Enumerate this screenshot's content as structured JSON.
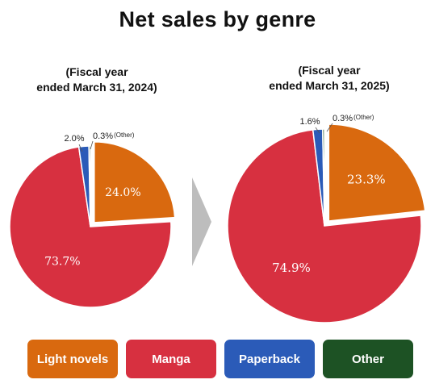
{
  "title": "Net sales by genre",
  "chart_data": [
    {
      "type": "pie",
      "subtitle_line1": "(Fiscal year",
      "subtitle_line2": "ended March 31, 2024)",
      "slices": [
        {
          "name": "Light novels",
          "value": 24.0,
          "label": "24.0%"
        },
        {
          "name": "Manga",
          "value": 73.7,
          "label": "73.7%"
        },
        {
          "name": "Paperback",
          "value": 2.0,
          "label": "2.0%"
        },
        {
          "name": "Other",
          "value": 0.3,
          "label": "0.3%",
          "tag": "(Other)"
        }
      ]
    },
    {
      "type": "pie",
      "subtitle_line1": "(Fiscal year",
      "subtitle_line2": "ended March 31, 2025)",
      "slices": [
        {
          "name": "Light novels",
          "value": 23.3,
          "label": "23.3%"
        },
        {
          "name": "Manga",
          "value": 74.9,
          "label": "74.9%"
        },
        {
          "name": "Paperback",
          "value": 1.6,
          "label": "1.6%"
        },
        {
          "name": "Other",
          "value": 0.3,
          "label": "0.3%",
          "tag": "(Other)"
        }
      ]
    }
  ],
  "legend": [
    {
      "label": "Light novels",
      "color": "#d9690f"
    },
    {
      "label": "Manga",
      "color": "#d73040"
    },
    {
      "label": "Paperback",
      "color": "#2b5bb8"
    },
    {
      "label": "Other",
      "color": "#1d5224"
    }
  ],
  "colors": {
    "Light novels": "#d9690f",
    "Manga": "#d73040",
    "Paperback": "#2b5bb8",
    "Other": "#1d5224"
  },
  "arrow_icon": "right-arrow-icon"
}
